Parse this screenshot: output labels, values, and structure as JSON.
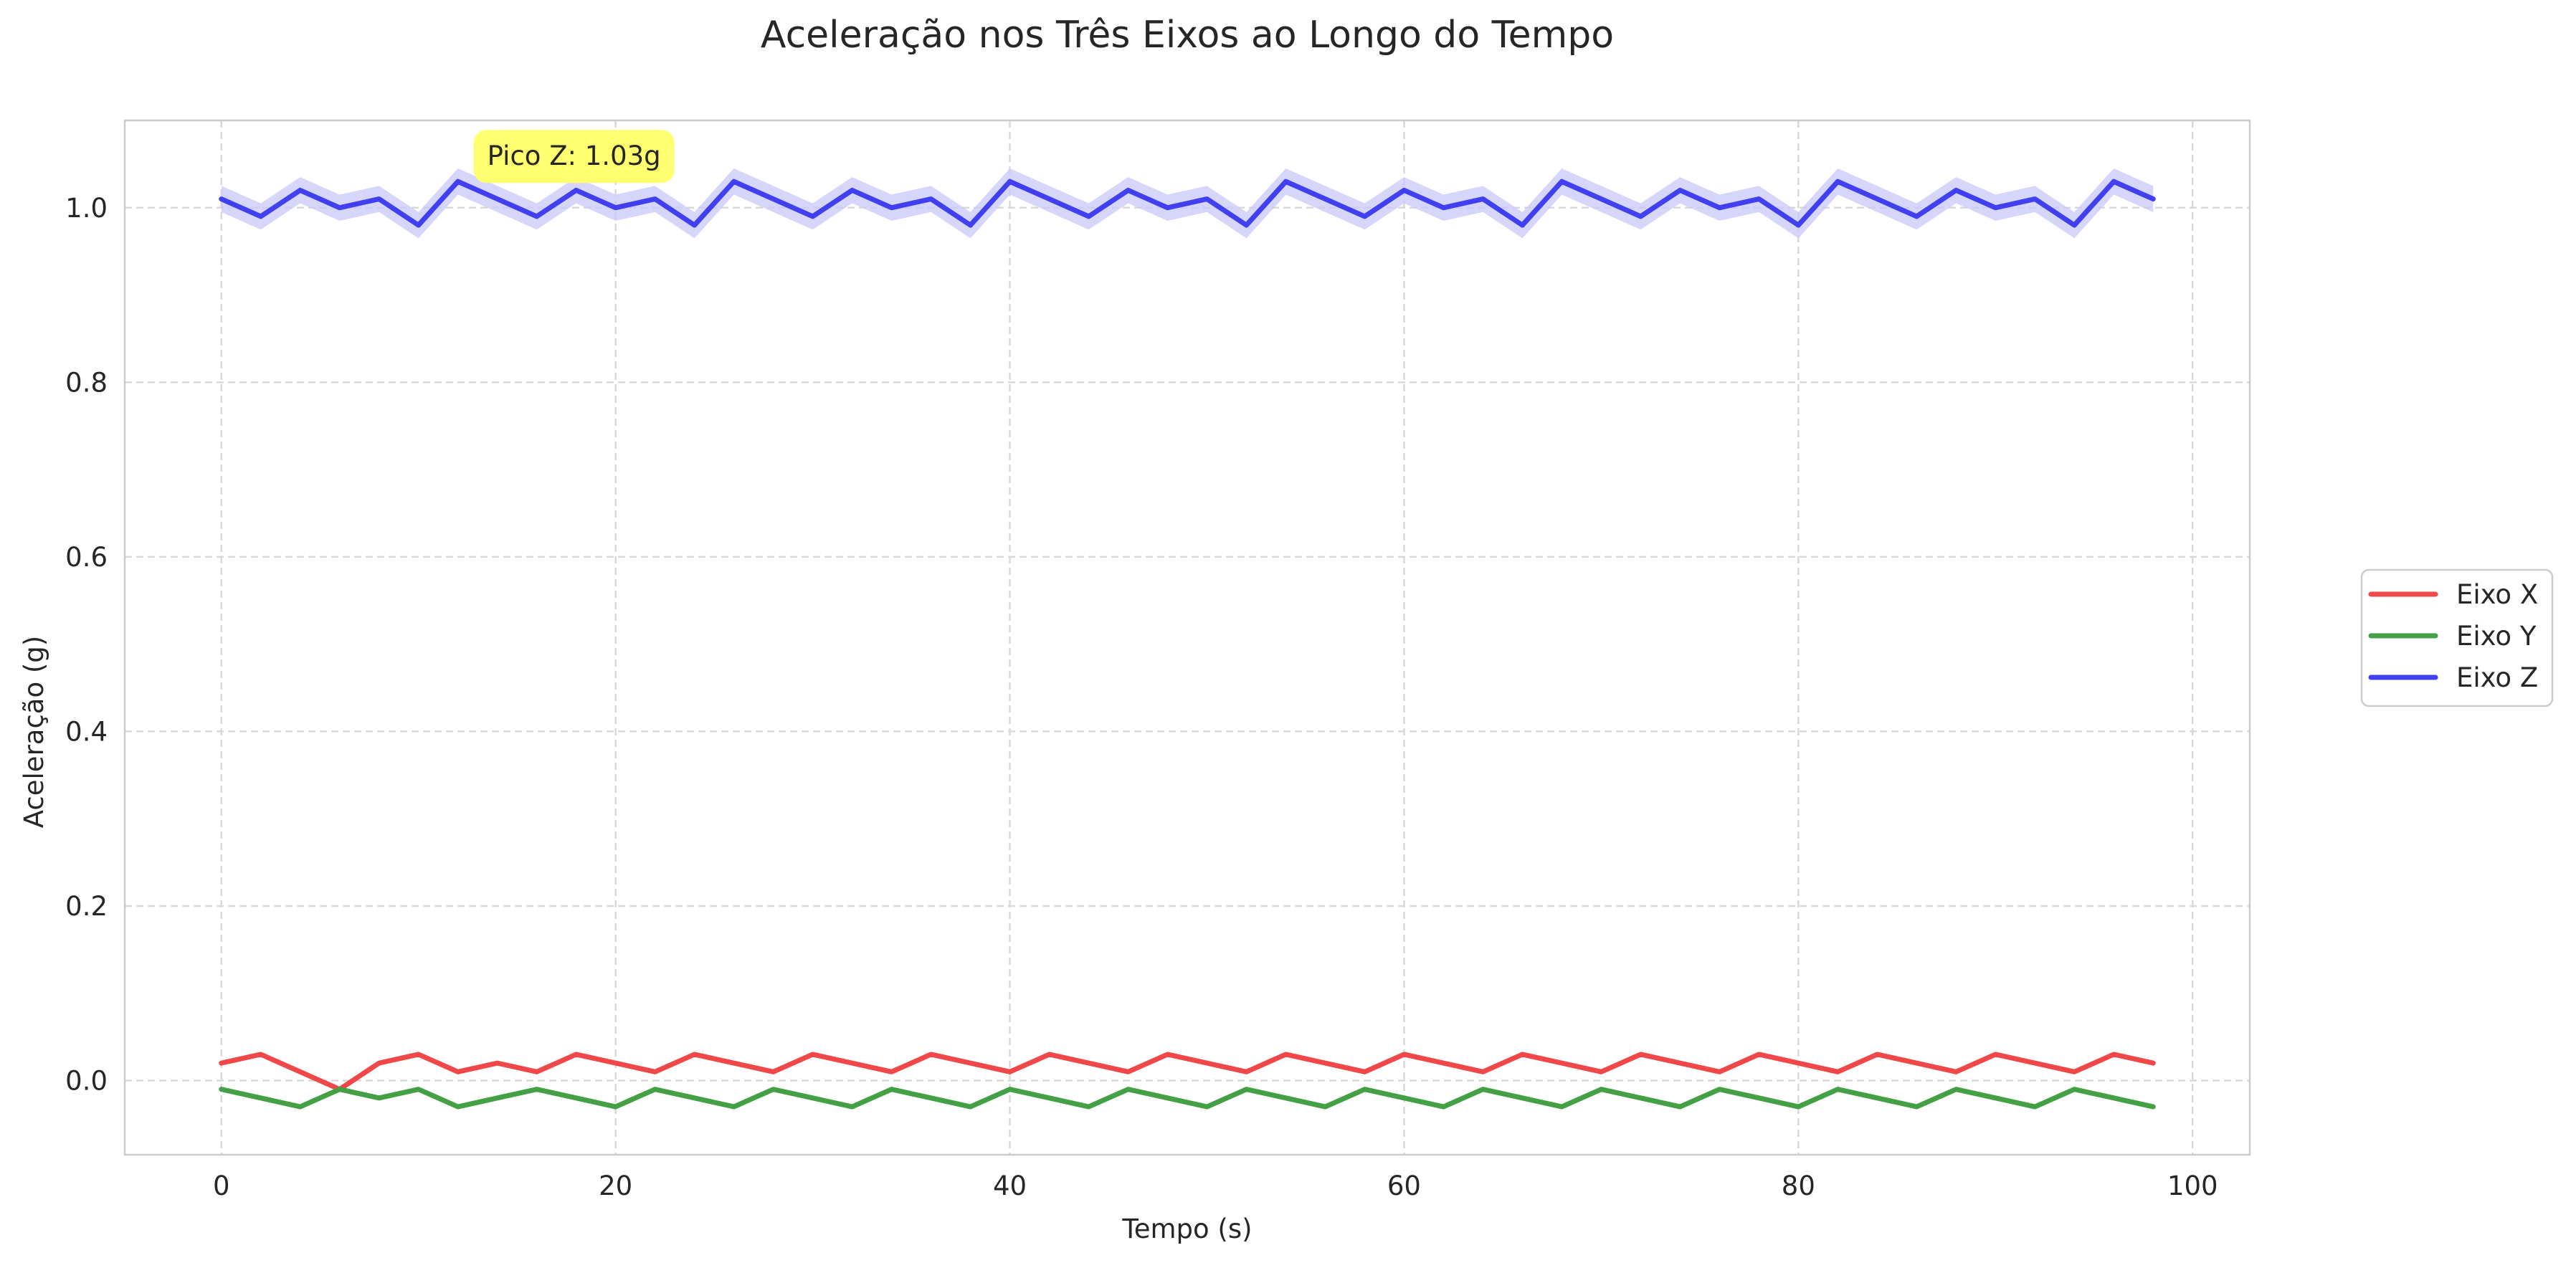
{
  "chart_data": {
    "type": "line",
    "title": "Aceleração nos Três Eixos ao Longo do Tempo",
    "xlabel": "Tempo (s)",
    "ylabel": "Aceleração (g)",
    "xlim": [
      -4.9,
      102.9
    ],
    "ylim": [
      -0.085,
      1.1
    ],
    "xticks": [
      0,
      20,
      40,
      60,
      80,
      100
    ],
    "xtick_labels": [
      "0",
      "20",
      "40",
      "60",
      "80",
      "100"
    ],
    "yticks": [
      0.0,
      0.2,
      0.4,
      0.6,
      0.8,
      1.0
    ],
    "ytick_labels": [
      "0.0",
      "0.2",
      "0.4",
      "0.6",
      "0.8",
      "1.0"
    ],
    "grid": true,
    "legend_position": "right",
    "x": [
      0,
      2,
      4,
      6,
      8,
      10,
      12,
      14,
      16,
      18,
      20,
      22,
      24,
      26,
      28,
      30,
      32,
      34,
      36,
      38,
      40,
      42,
      44,
      46,
      48,
      50,
      52,
      54,
      56,
      58,
      60,
      62,
      64,
      66,
      68,
      70,
      72,
      74,
      76,
      78,
      80,
      82,
      84,
      86,
      88,
      90,
      92,
      94,
      96,
      98
    ],
    "series": [
      {
        "name": "Eixo X",
        "color": "#f04848",
        "values": [
          0.02,
          0.03,
          0.01,
          -0.01,
          0.02,
          0.03,
          0.01,
          0.02,
          0.01,
          0.03,
          0.02,
          0.01,
          0.03,
          0.02,
          0.01,
          0.03,
          0.02,
          0.01,
          0.03,
          0.02,
          0.01,
          0.03,
          0.02,
          0.01,
          0.03,
          0.02,
          0.01,
          0.03,
          0.02,
          0.01,
          0.03,
          0.02,
          0.01,
          0.03,
          0.02,
          0.01,
          0.03,
          0.02,
          0.01,
          0.03,
          0.02,
          0.01,
          0.03,
          0.02,
          0.01,
          0.03,
          0.02,
          0.01,
          0.03,
          0.02
        ]
      },
      {
        "name": "Eixo Y",
        "color": "#44a044",
        "values": [
          -0.01,
          -0.02,
          -0.03,
          -0.01,
          -0.02,
          -0.01,
          -0.03,
          -0.02,
          -0.01,
          -0.02,
          -0.03,
          -0.01,
          -0.02,
          -0.03,
          -0.01,
          -0.02,
          -0.03,
          -0.01,
          -0.02,
          -0.03,
          -0.01,
          -0.02,
          -0.03,
          -0.01,
          -0.02,
          -0.03,
          -0.01,
          -0.02,
          -0.03,
          -0.01,
          -0.02,
          -0.03,
          -0.01,
          -0.02,
          -0.03,
          -0.01,
          -0.02,
          -0.03,
          -0.01,
          -0.02,
          -0.03,
          -0.01,
          -0.02,
          -0.03,
          -0.01,
          -0.02,
          -0.03,
          -0.01,
          -0.02,
          -0.03
        ]
      },
      {
        "name": "Eixo Z",
        "color": "#4040f0",
        "band": 0.015,
        "band_color": "#c8c8f8",
        "values": [
          1.01,
          0.99,
          1.02,
          1.0,
          1.01,
          0.98,
          1.03,
          1.01,
          0.99,
          1.02,
          1.0,
          1.01,
          0.98,
          1.03,
          1.01,
          0.99,
          1.02,
          1.0,
          1.01,
          0.98,
          1.03,
          1.01,
          0.99,
          1.02,
          1.0,
          1.01,
          0.98,
          1.03,
          1.01,
          0.99,
          1.02,
          1.0,
          1.01,
          0.98,
          1.03,
          1.01,
          0.99,
          1.02,
          1.0,
          1.01,
          0.98,
          1.03,
          1.01,
          0.99,
          1.02,
          1.0,
          1.01,
          0.98,
          1.03,
          1.01
        ]
      }
    ],
    "annotations": [
      {
        "text": "Pico Z: 1.03g",
        "x": 12,
        "y": 1.03,
        "background": "#ffff70"
      }
    ]
  }
}
